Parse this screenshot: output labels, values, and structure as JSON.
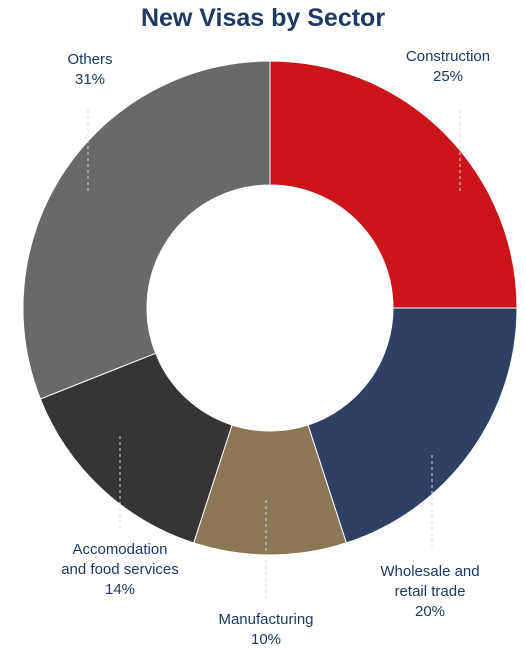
{
  "chart_data": {
    "type": "pie",
    "title": "New Visas by Sector",
    "slices": [
      {
        "label": "Construction",
        "label_lines": [
          "Construction"
        ],
        "value": 25,
        "value_label": "25%",
        "color": "#cc141b"
      },
      {
        "label": "Wholesale and retail trade",
        "label_lines": [
          "Wholesale and",
          "retail trade"
        ],
        "value": 20,
        "value_label": "20%",
        "color": "#2e4165"
      },
      {
        "label": "Manufacturing",
        "label_lines": [
          "Manufacturing"
        ],
        "value": 10,
        "value_label": "10%",
        "color": "#8b7655"
      },
      {
        "label": "Accomodation and food services",
        "label_lines": [
          "Accomodation",
          "and food services"
        ],
        "value": 14,
        "value_label": "14%",
        "color": "#363434"
      },
      {
        "label": "Others",
        "label_lines": [
          "Others"
        ],
        "value": 31,
        "value_label": "31%",
        "color": "#69696b"
      }
    ],
    "donut": true,
    "legend": "none"
  }
}
